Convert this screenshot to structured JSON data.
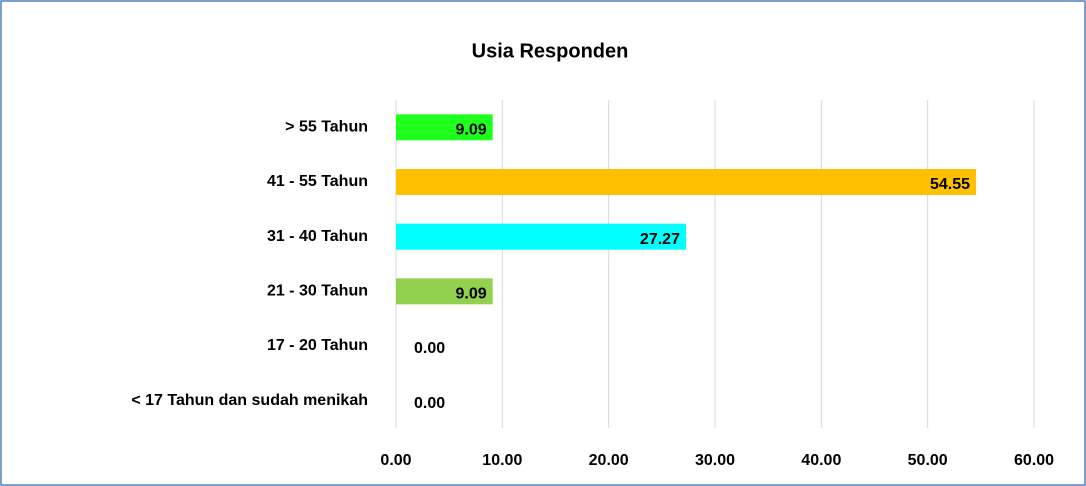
{
  "chart_data": {
    "type": "bar",
    "orientation": "horizontal",
    "title": "Usia Responden",
    "categories": [
      "> 55 Tahun",
      "41 - 55 Tahun",
      "31 - 40 Tahun",
      "21 - 30 Tahun",
      "17 - 20 Tahun",
      "< 17 Tahun dan sudah menikah"
    ],
    "values": [
      9.09,
      54.55,
      27.27,
      9.09,
      0,
      0
    ],
    "value_labels": [
      "9.09",
      "54.55",
      "27.27",
      "9.09",
      "0.00",
      "0.00"
    ],
    "colors": [
      "#1eff1e",
      "#ffc000",
      "#00ffff",
      "#92d050",
      "#92d050",
      "#92d050"
    ],
    "xlim": [
      0,
      60
    ],
    "xticks": [
      {
        "value": 0,
        "label": "0.00"
      },
      {
        "value": 10,
        "label": "10.00"
      },
      {
        "value": 20,
        "label": "20.00"
      },
      {
        "value": 30,
        "label": "30.00"
      },
      {
        "value": 40,
        "label": "40.00"
      },
      {
        "value": 50,
        "label": "50.00"
      },
      {
        "value": 60,
        "label": "60.00"
      }
    ],
    "grid": true
  }
}
